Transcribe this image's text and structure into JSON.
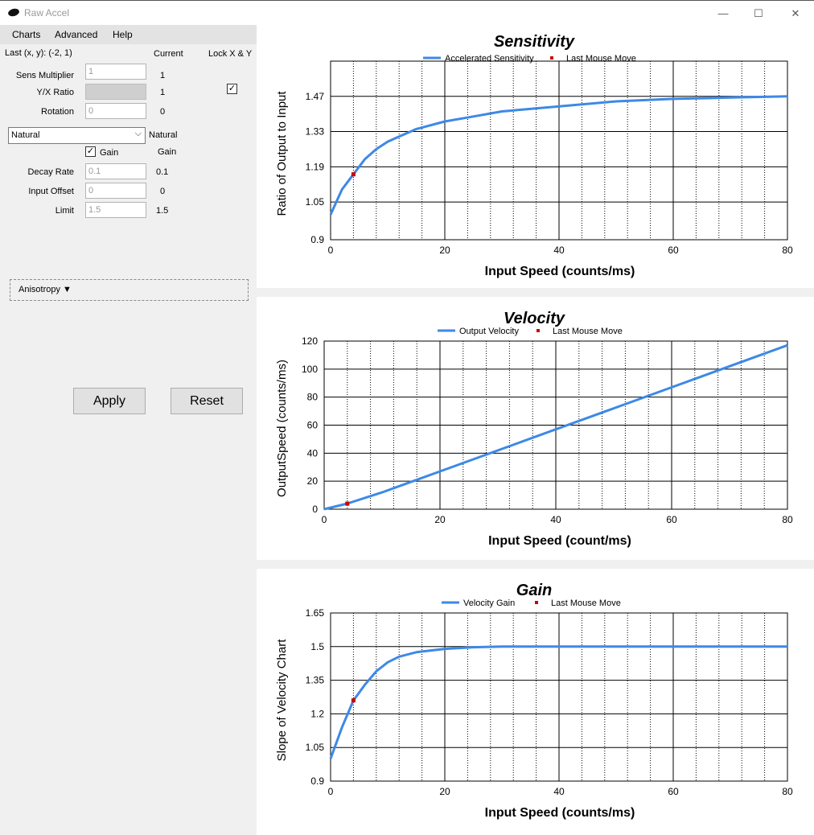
{
  "window": {
    "title": "Raw Accel",
    "minimize_glyph": "—",
    "maximize_glyph": "☐",
    "close_glyph": "✕"
  },
  "menu": {
    "charts": "Charts",
    "advanced": "Advanced",
    "help": "Help"
  },
  "header": {
    "last_xy": "Last (x, y): (-2, 1)",
    "current": "Current",
    "lock": "Lock X & Y"
  },
  "fields": {
    "sens": {
      "label": "Sens Multiplier",
      "value": "1",
      "current": "1"
    },
    "yx": {
      "label": "Y/X Ratio",
      "value": "",
      "current": "1"
    },
    "rotation": {
      "label": "Rotation",
      "value": "0",
      "current": "0"
    },
    "decay": {
      "label": "Decay Rate",
      "value": "0.1",
      "current": "0.1"
    },
    "offset": {
      "label": "Input Offset",
      "value": "0",
      "current": "0"
    },
    "limit": {
      "label": "Limit",
      "value": "1.5",
      "current": "1.5"
    }
  },
  "mode": {
    "selected": "Natural",
    "current": "Natural"
  },
  "gain": {
    "label": "Gain",
    "current": "Gain",
    "checked": "✓"
  },
  "lock_checked": "✓",
  "anisotropy": {
    "label": "Anisotropy ▼"
  },
  "buttons": {
    "apply": "Apply",
    "reset": "Reset"
  },
  "colors": {
    "line": "#3d89e6",
    "marker": "#cc0000"
  },
  "chart_data": [
    {
      "type": "line",
      "title": "Sensitivity",
      "xlabel": "Input Speed (counts/ms)",
      "ylabel": "Ratio of Output to Input",
      "xlim": [
        0,
        80
      ],
      "ylim": [
        0.9,
        1.61
      ],
      "yticks": [
        "0.9",
        "1.05",
        "1.19",
        "1.33",
        "1.47"
      ],
      "ytick_values": [
        0.9,
        1.05,
        1.19,
        1.33,
        1.47
      ],
      "xticks": [
        0,
        20,
        40,
        60,
        80
      ],
      "legend": [
        "Accelerated Sensitivity",
        "Last Mouse Move"
      ],
      "series": [
        {
          "name": "Accelerated Sensitivity",
          "x": [
            0,
            2,
            4,
            6,
            8,
            10,
            12,
            15,
            20,
            25,
            30,
            40,
            50,
            60,
            70,
            80
          ],
          "y": [
            1.0,
            1.1,
            1.16,
            1.22,
            1.26,
            1.29,
            1.31,
            1.34,
            1.37,
            1.39,
            1.41,
            1.43,
            1.45,
            1.46,
            1.465,
            1.47
          ]
        }
      ],
      "marker": {
        "x": 4,
        "y": 1.16
      }
    },
    {
      "type": "line",
      "title": "Velocity",
      "xlabel": "Input Speed (count/ms)",
      "ylabel": "OutputSpeed (counts/ms)",
      "xlim": [
        0,
        80
      ],
      "ylim": [
        0,
        120
      ],
      "yticks": [
        "0",
        "20",
        "40",
        "60",
        "80",
        "100",
        "120"
      ],
      "ytick_values": [
        0,
        20,
        40,
        60,
        80,
        100,
        120
      ],
      "xticks": [
        0,
        20,
        40,
        60,
        80
      ],
      "legend": [
        "Output Velocity",
        "Last Mouse Move"
      ],
      "series": [
        {
          "name": "Output Velocity",
          "x": [
            0,
            4,
            10,
            20,
            30,
            40,
            50,
            60,
            70,
            80
          ],
          "y": [
            0,
            4,
            12,
            27,
            42,
            57,
            72,
            87,
            102,
            117
          ]
        }
      ],
      "marker": {
        "x": 4,
        "y": 4
      }
    },
    {
      "type": "line",
      "title": "Gain",
      "xlabel": "Input Speed (counts/ms)",
      "ylabel": "Slope of Velocity Chart",
      "xlim": [
        0,
        80
      ],
      "ylim": [
        0.9,
        1.65
      ],
      "yticks": [
        "0.9",
        "1.05",
        "1.2",
        "1.35",
        "1.5",
        "1.65"
      ],
      "ytick_values": [
        0.9,
        1.05,
        1.2,
        1.35,
        1.5,
        1.65
      ],
      "xticks": [
        0,
        20,
        40,
        60,
        80
      ],
      "legend": [
        "Velocity Gain",
        "Last Mouse Move"
      ],
      "series": [
        {
          "name": "Velocity Gain",
          "x": [
            0,
            2,
            4,
            6,
            8,
            10,
            12,
            15,
            20,
            25,
            30,
            40,
            60,
            80
          ],
          "y": [
            1.0,
            1.14,
            1.26,
            1.33,
            1.39,
            1.43,
            1.455,
            1.475,
            1.49,
            1.497,
            1.5,
            1.5,
            1.5,
            1.5
          ]
        }
      ],
      "marker": {
        "x": 4,
        "y": 1.26
      }
    }
  ]
}
